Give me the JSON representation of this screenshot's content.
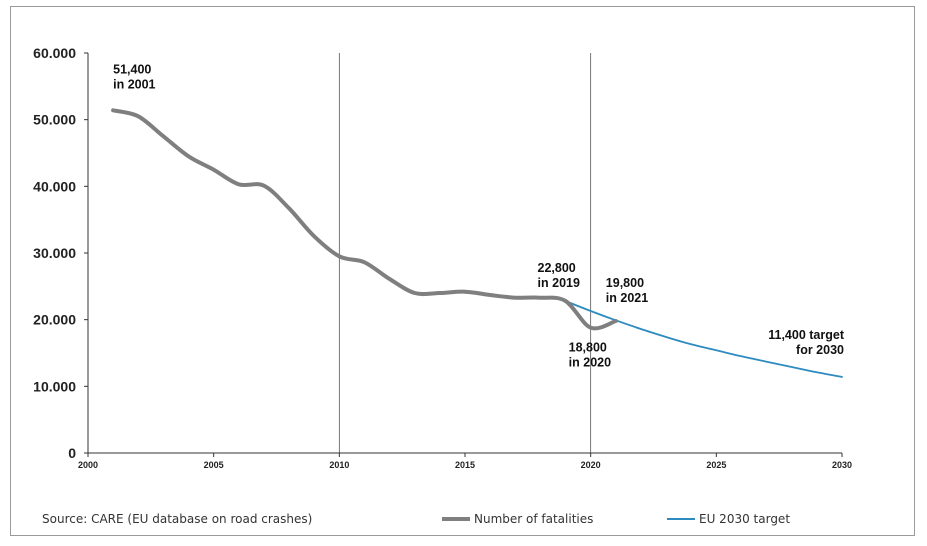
{
  "chart_data": {
    "type": "line",
    "title": "",
    "xlabel": "",
    "ylabel": "",
    "xlim": [
      2000,
      2030
    ],
    "ylim": [
      0,
      60000
    ],
    "x_ticks": [
      "2000",
      "2005",
      "2010",
      "2015",
      "2020",
      "2025",
      "2030"
    ],
    "y_ticks": [
      "0",
      "10.000",
      "20.000",
      "30.000",
      "40.000",
      "50.000",
      "60.000"
    ],
    "vertical_gridlines_at": [
      2010,
      2020
    ],
    "grid": "vertical lines at 2010 and 2020",
    "series": [
      {
        "name": "Number of fatalities",
        "color": "#7f7f7f",
        "x": [
          2001,
          2002,
          2003,
          2004,
          2005,
          2006,
          2007,
          2008,
          2009,
          2010,
          2011,
          2012,
          2013,
          2014,
          2015,
          2016,
          2017,
          2018,
          2019,
          2020,
          2021
        ],
        "y": [
          51400,
          50500,
          47500,
          44500,
          42500,
          40300,
          40100,
          36700,
          32500,
          29500,
          28600,
          26100,
          24000,
          24000,
          24200,
          23700,
          23300,
          23300,
          22800,
          18800,
          19800
        ]
      },
      {
        "name": "EU 2030 target",
        "color": "#2e8bc0",
        "x": [
          2019,
          2020,
          2021,
          2022,
          2023,
          2024,
          2025,
          2026,
          2027,
          2028,
          2029,
          2030
        ],
        "y": [
          22800,
          21300,
          19900,
          18600,
          17400,
          16300,
          15400,
          14500,
          13700,
          12900,
          12100,
          11400
        ]
      }
    ],
    "annotations": [
      {
        "lines": [
          "51,400",
          "in 2001"
        ],
        "x": 2001,
        "y": 51400
      },
      {
        "lines": [
          "22,800",
          "in 2019"
        ],
        "x": 2019,
        "y": 22800
      },
      {
        "lines": [
          "19,800",
          "in 2021"
        ],
        "x": 2021,
        "y": 19800
      },
      {
        "lines": [
          "18,800",
          "in 2020"
        ],
        "x": 2020,
        "y": 18800
      },
      {
        "lines": [
          "11,400 target",
          "for 2030"
        ],
        "x": 2030,
        "y": 11400
      }
    ],
    "legend_placement": "bottom"
  },
  "source": "Source: CARE (EU database on road crashes)",
  "legend": [
    {
      "label": "Number of fatalities",
      "color": "#7f7f7f"
    },
    {
      "label": "EU 2030 target",
      "color": "#2e8bc0"
    }
  ]
}
